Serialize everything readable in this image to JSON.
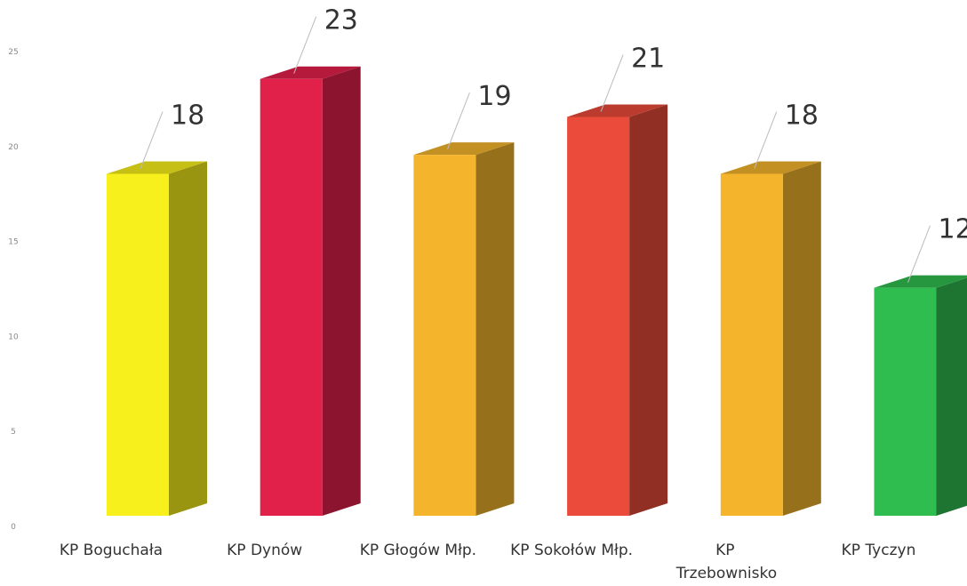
{
  "chart_data": {
    "type": "bar3d",
    "categories": [
      "KP Boguchała",
      "KP Dynów",
      "KP Głogów Młp.",
      "KP Sokołów Młp.",
      "KP Trzebownisko",
      "KP Tyczyn"
    ],
    "values": [
      18,
      23,
      19,
      21,
      18,
      12
    ],
    "colors": [
      "#f7f01c",
      "#e2214b",
      "#f4b52c",
      "#ea4b3a",
      "#f4b52c",
      "#2fbd4f"
    ],
    "ylim": [
      0,
      25
    ],
    "yticks": [
      0,
      5,
      10,
      15,
      20,
      25
    ]
  }
}
